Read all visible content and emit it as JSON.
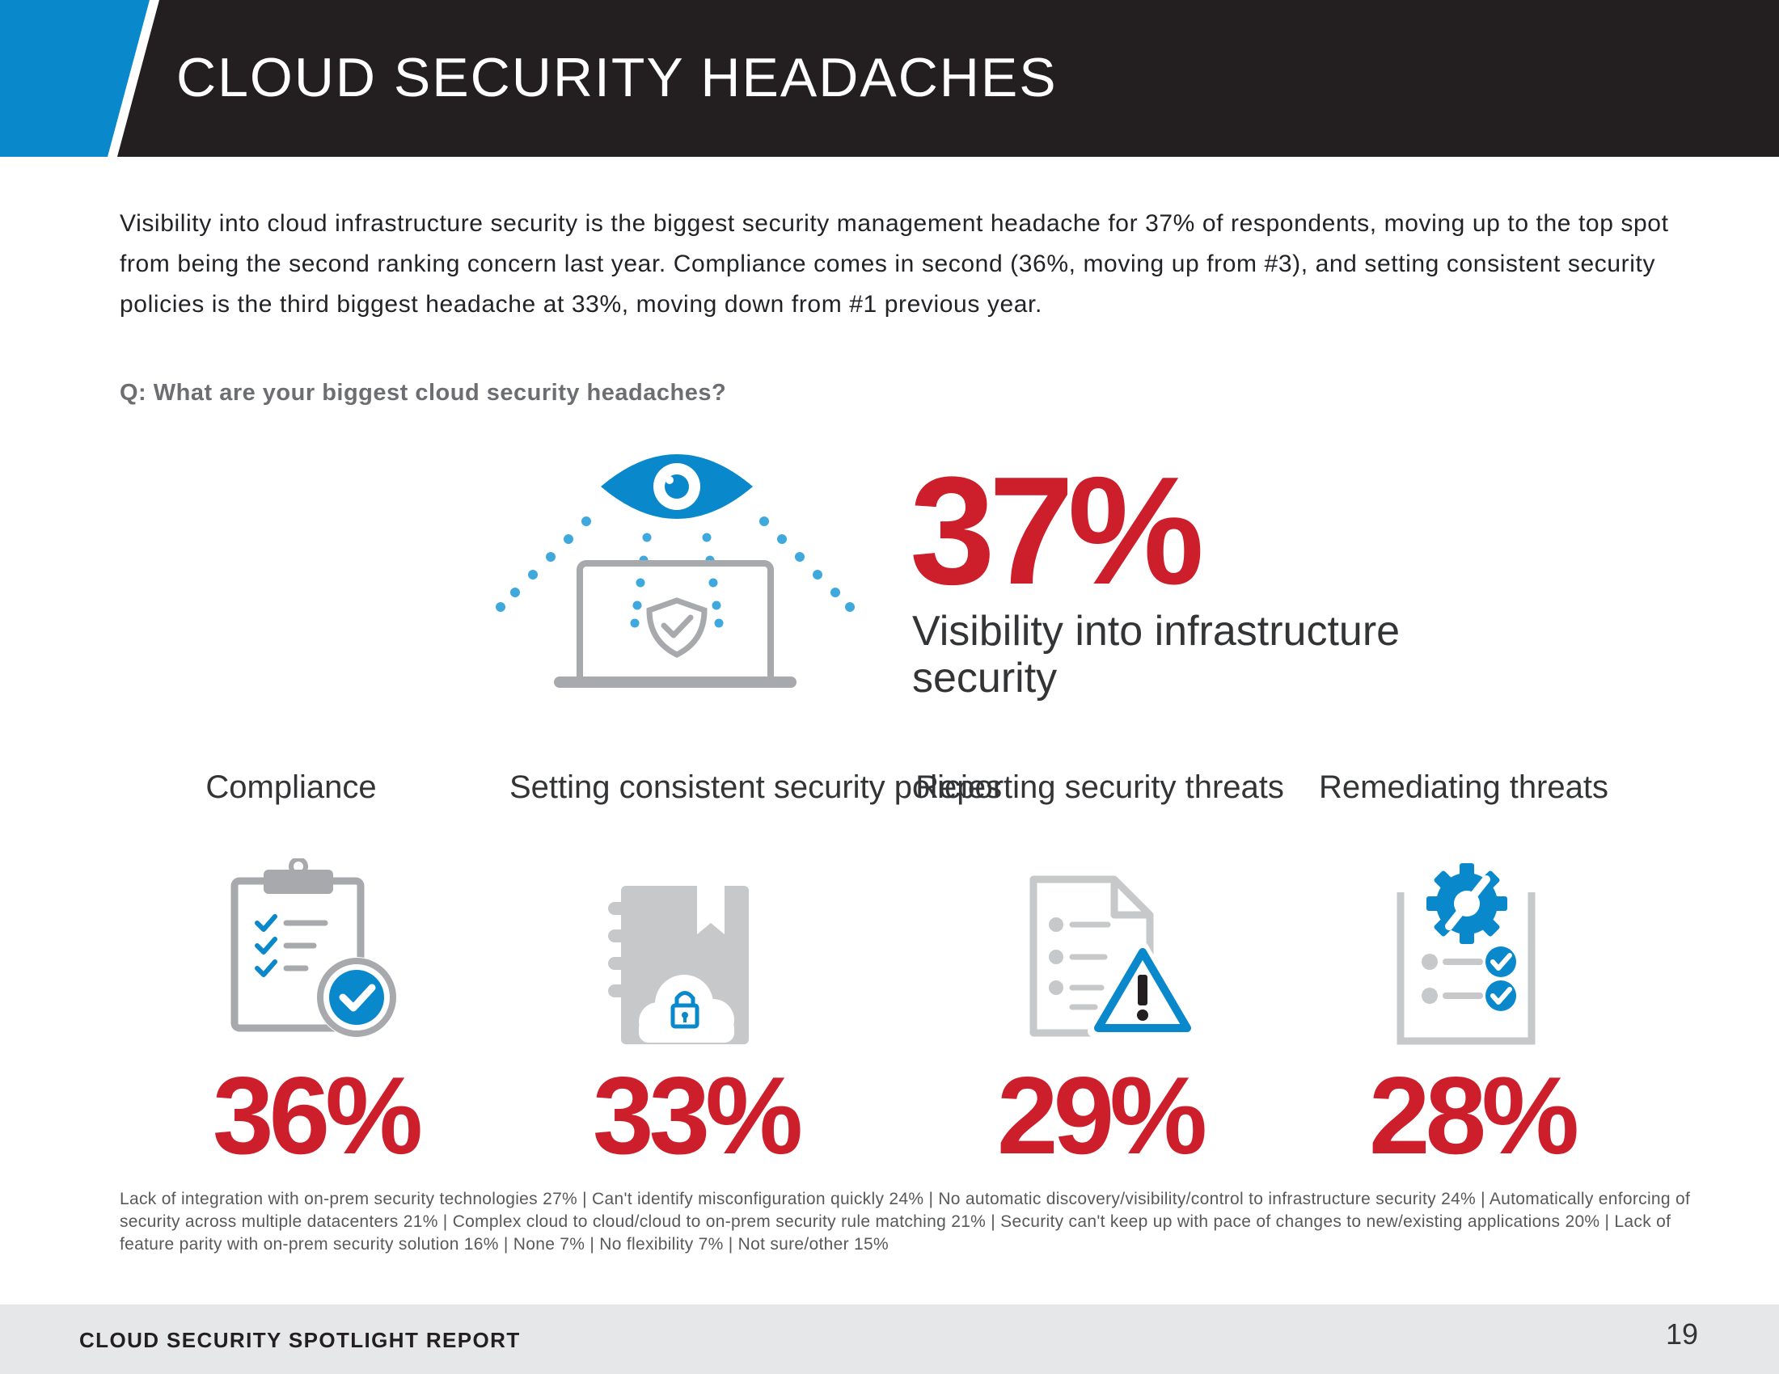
{
  "header": {
    "title": "CLOUD SECURITY HEADACHES"
  },
  "intro": "Visibility into cloud infrastructure security is the biggest security management headache for 37% of respondents, moving up to the top spot from being the second ranking concern last year. Compliance comes in second (36%, moving up from #3), and setting consistent security policies is the third biggest headache at 33%, moving down from #1 previous year.",
  "question": "Q: What are your biggest cloud security headaches?",
  "hero": {
    "value": "37%",
    "label": "Visibility into infrastructure security",
    "icon": "eye-laptop-shield-icon"
  },
  "categories": [
    {
      "label": "Compliance",
      "value": "36%",
      "icon": "clipboard-check-icon"
    },
    {
      "label": "Setting consistent security policies",
      "value": "33%",
      "icon": "notebook-cloud-lock-icon"
    },
    {
      "label": "Reporting security threats",
      "value": "29%",
      "icon": "document-warning-icon"
    },
    {
      "label": "Remediating threats",
      "value": "28%",
      "icon": "clipboard-gear-icon"
    }
  ],
  "footnote": "Lack of integration with on-prem security technologies 27% |  Can't identify misconfiguration quickly 24% |  No automatic discovery/visibility/control to infrastructure security 24%  |  Automatically enforcing of security across multiple datacenters 21% |  Complex cloud to cloud/cloud to on-prem security rule matching 21% |  Security can't keep up with pace of changes to new/existing applications 20% |  Lack of feature parity with on-prem security solution 16% |  None 7% |  No flexibility 7% |  Not sure/other 15%",
  "footer": {
    "title": "CLOUD SECURITY SPOTLIGHT REPORT",
    "page_number": "19"
  },
  "colors": {
    "accent_blue": "#0a88cc",
    "dark": "#231f20",
    "red": "#cc1f2b",
    "gray": "#a7a9ac"
  }
}
